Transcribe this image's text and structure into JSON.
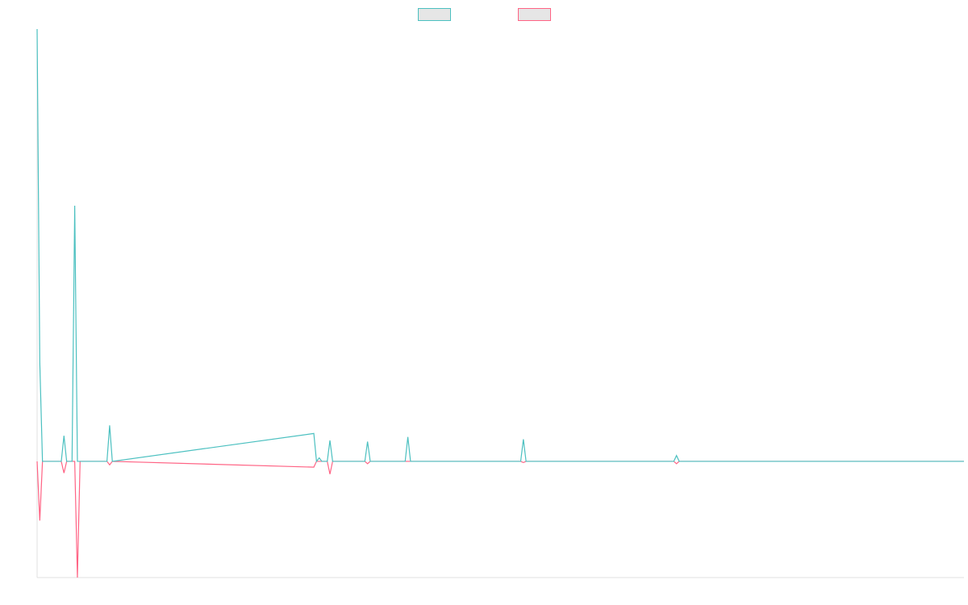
{
  "chart_data": {
    "type": "line",
    "x": [
      0,
      1,
      2,
      9,
      10,
      11,
      13,
      14,
      15,
      16,
      26,
      27,
      28,
      103,
      104,
      105,
      106,
      108,
      109,
      110,
      122,
      123,
      124,
      137,
      138,
      139,
      180,
      181,
      182,
      237,
      238,
      239,
      345
    ],
    "series": [
      {
        "color": "#4bc0c0",
        "values": [
          372,
          85,
          0,
          0,
          22,
          0,
          0,
          220,
          0,
          0,
          0,
          31,
          0,
          24,
          0,
          3,
          0,
          0,
          18,
          0,
          0,
          17,
          0,
          0,
          21,
          0,
          0,
          19,
          0,
          0,
          5,
          0,
          0
        ]
      },
      {
        "color": "#ff6384",
        "values": [
          0,
          -51,
          0,
          0,
          -10,
          0,
          0,
          0,
          -100,
          0,
          0,
          -3,
          0,
          -5,
          0,
          0,
          0,
          0,
          -11,
          0,
          0,
          -2,
          0,
          0,
          0,
          0,
          0,
          -1,
          0,
          0,
          -2,
          0,
          0
        ]
      }
    ],
    "xlim": [
      0,
      345
    ],
    "ylim": [
      -100,
      372
    ],
    "legend": "top"
  }
}
